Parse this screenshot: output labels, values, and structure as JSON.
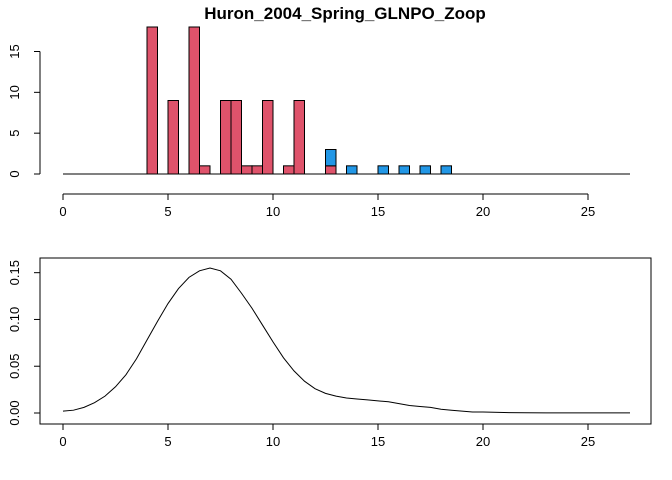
{
  "chart_data": [
    {
      "type": "bar",
      "title": "Huron_2004_Spring_GLNPO_Zoop",
      "xlabel": "",
      "ylabel": "",
      "xlim": [
        0,
        27
      ],
      "ylim": [
        0,
        18
      ],
      "x_ticks": [
        0,
        5,
        10,
        15,
        20,
        25
      ],
      "y_ticks": [
        0,
        5,
        10,
        15
      ],
      "baseline_x_range": [
        0,
        27
      ],
      "bin_width": 0.5,
      "colors": {
        "red": "#DF536B",
        "blue": "#2297E6"
      },
      "series": [
        {
          "color": "#DF536B",
          "points": [
            {
              "x": 4.0,
              "value": 18
            },
            {
              "x": 5.0,
              "value": 9
            },
            {
              "x": 6.0,
              "value": 18
            },
            {
              "x": 6.5,
              "value": 1
            },
            {
              "x": 7.5,
              "value": 9
            },
            {
              "x": 8.0,
              "value": 9
            },
            {
              "x": 8.5,
              "value": 1
            },
            {
              "x": 9.0,
              "value": 1
            },
            {
              "x": 9.5,
              "value": 9
            },
            {
              "x": 10.5,
              "value": 1
            },
            {
              "x": 11.0,
              "value": 9
            },
            {
              "x": 12.5,
              "value": 1
            }
          ]
        },
        {
          "color": "#2297E6",
          "stacked_on_red": true,
          "points": [
            {
              "x": 12.5,
              "value": 2
            },
            {
              "x": 13.5,
              "value": 1
            },
            {
              "x": 15.0,
              "value": 1
            },
            {
              "x": 16.0,
              "value": 1
            },
            {
              "x": 17.0,
              "value": 1
            },
            {
              "x": 18.0,
              "value": 1
            }
          ]
        }
      ]
    },
    {
      "type": "line",
      "title": "",
      "xlabel": "",
      "ylabel": "",
      "xlim": [
        0,
        27
      ],
      "ylim": [
        0,
        0.155
      ],
      "x_ticks": [
        0,
        5,
        10,
        15,
        20,
        25
      ],
      "y_ticks": [
        "0.00",
        "0.05",
        "0.10",
        "0.15"
      ],
      "x": [
        0,
        0.5,
        1,
        1.5,
        2,
        2.5,
        3,
        3.5,
        4,
        4.5,
        5,
        5.5,
        6,
        6.5,
        7,
        7.5,
        8,
        8.5,
        9,
        9.5,
        10,
        10.5,
        11,
        11.5,
        12,
        12.5,
        13,
        13.5,
        14,
        14.5,
        15,
        15.5,
        16,
        16.5,
        17,
        17.5,
        18,
        18.5,
        19,
        19.5,
        20,
        21,
        22,
        23,
        24,
        25,
        26,
        27
      ],
      "y": [
        0.002,
        0.003,
        0.006,
        0.011,
        0.018,
        0.028,
        0.041,
        0.058,
        0.078,
        0.098,
        0.117,
        0.133,
        0.145,
        0.152,
        0.155,
        0.152,
        0.143,
        0.128,
        0.112,
        0.094,
        0.076,
        0.059,
        0.045,
        0.034,
        0.026,
        0.021,
        0.018,
        0.016,
        0.015,
        0.014,
        0.013,
        0.012,
        0.01,
        0.008,
        0.007,
        0.006,
        0.004,
        0.003,
        0.002,
        0.001,
        0.001,
        0.0005,
        0.0002,
        0.0001,
        0.0001,
        0.0001,
        0.0001,
        0.0001
      ]
    }
  ]
}
